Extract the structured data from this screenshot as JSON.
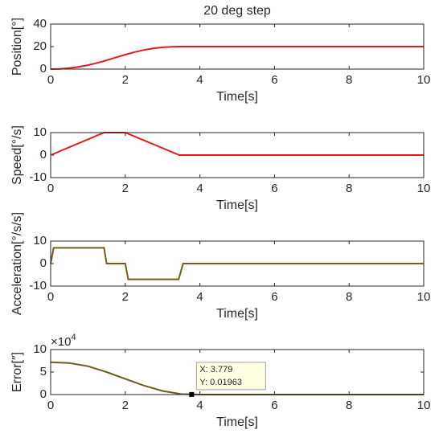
{
  "chart_data": [
    {
      "type": "line",
      "title": "20 deg step",
      "xlabel": "Time[s]",
      "ylabel": "Position[°]",
      "x": [
        0,
        0.25,
        0.5,
        0.75,
        1,
        1.25,
        1.43,
        1.7,
        2,
        2.25,
        2.5,
        2.75,
        3,
        3.25,
        3.43,
        4,
        10
      ],
      "series": [
        {
          "color": "#e3191c",
          "values": [
            0,
            0.22,
            0.88,
            1.97,
            3.5,
            5.47,
            7.15,
            9.85,
            12.85,
            15.13,
            16.98,
            18.38,
            19.35,
            19.88,
            20,
            20,
            20
          ]
        }
      ],
      "xlim": [
        0,
        10
      ],
      "xticks": [
        0,
        2,
        4,
        6,
        8,
        10
      ],
      "ylim": [
        0,
        40
      ],
      "yticks": [
        0,
        20,
        40
      ]
    },
    {
      "type": "line",
      "xlabel": "Time[s]",
      "ylabel": "Speed[°/s]",
      "x": [
        0,
        1.43,
        2,
        3.45,
        10
      ],
      "series": [
        {
          "color": "#e3191c",
          "values": [
            0,
            10,
            10,
            0,
            0
          ]
        }
      ],
      "xlim": [
        0,
        10
      ],
      "xticks": [
        0,
        2,
        4,
        6,
        8,
        10
      ],
      "ylim": [
        -10,
        10
      ],
      "yticks": [
        -10,
        0,
        10
      ]
    },
    {
      "type": "line",
      "xlabel": "Time[s]",
      "ylabel": "Acceleration[°/s/s]",
      "x": [
        0,
        0.08,
        1.43,
        1.5,
        2.0,
        2.08,
        3.43,
        3.55,
        10
      ],
      "series": [
        {
          "color": "#7a5a1c",
          "values": [
            0,
            7,
            7,
            0,
            0,
            -7,
            -7,
            0,
            0
          ]
        }
      ],
      "xlim": [
        0,
        10
      ],
      "xticks": [
        0,
        2,
        4,
        6,
        8,
        10
      ],
      "ylim": [
        -10,
        10
      ],
      "yticks": [
        -10,
        0,
        10
      ]
    },
    {
      "type": "line",
      "xlabel": "Time[s]",
      "ylabel": "Error[″]",
      "y_multiplier": {
        "base": "×10",
        "exponent": "4"
      },
      "x": [
        0,
        0.5,
        1,
        1.5,
        2,
        2.5,
        3,
        3.5,
        4,
        10
      ],
      "series": [
        {
          "color": "#6e5a1e",
          "values": [
            7.2,
            7.0,
            6.3,
            5.0,
            3.5,
            2.0,
            0.8,
            0.1,
            0,
            0
          ]
        }
      ],
      "xlim": [
        0,
        10
      ],
      "xticks": [
        0,
        2,
        4,
        6,
        8,
        10
      ],
      "ylim": [
        0,
        10
      ],
      "yticks": [
        0,
        5,
        10
      ],
      "annotation": {
        "x": 3.779,
        "y": 0.01963,
        "x_label": "X: 3.779",
        "y_label": "Y: 0.01963"
      }
    }
  ]
}
